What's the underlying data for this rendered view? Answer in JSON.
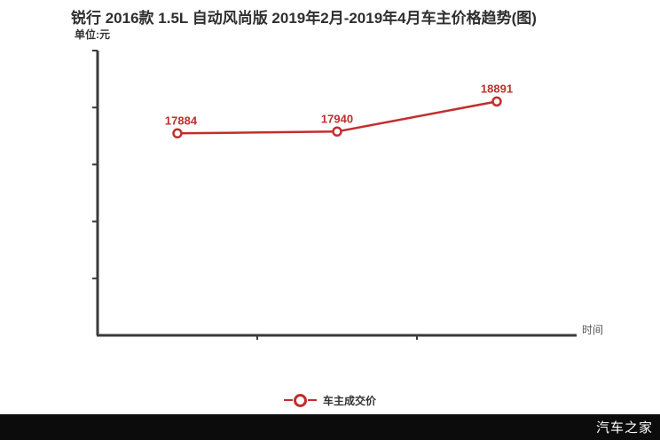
{
  "header": {
    "title": "锐行 2016款 1.5L 自动风尚版 2019年2月-2019年4月车主价格趋势(图)",
    "unit_label": "单位:元"
  },
  "axis": {
    "x_label": "时间"
  },
  "legend": {
    "label": "车主成交价"
  },
  "watermark": "汽车之家",
  "colors": {
    "line": "#c42d2d",
    "axis": "#3a3a3a",
    "title_text": "#2f2f2f"
  },
  "chart_data": {
    "type": "line",
    "title": "锐行 2016款 1.5L 自动风尚版 2019年2月-2019年4月车主价格趋势(图)",
    "ylabel": "单位:元",
    "xlabel": "时间",
    "grid": false,
    "legend_position": "bottom",
    "x_tick_labels": [],
    "ylim": [
      11500,
      20500
    ],
    "series": [
      {
        "name": "车主成交价",
        "values": [
          17884,
          17940,
          18891
        ],
        "point_labels": [
          "17884",
          "17940",
          "18891"
        ],
        "color": "#c42d2d",
        "marker": "open-circle"
      }
    ]
  }
}
